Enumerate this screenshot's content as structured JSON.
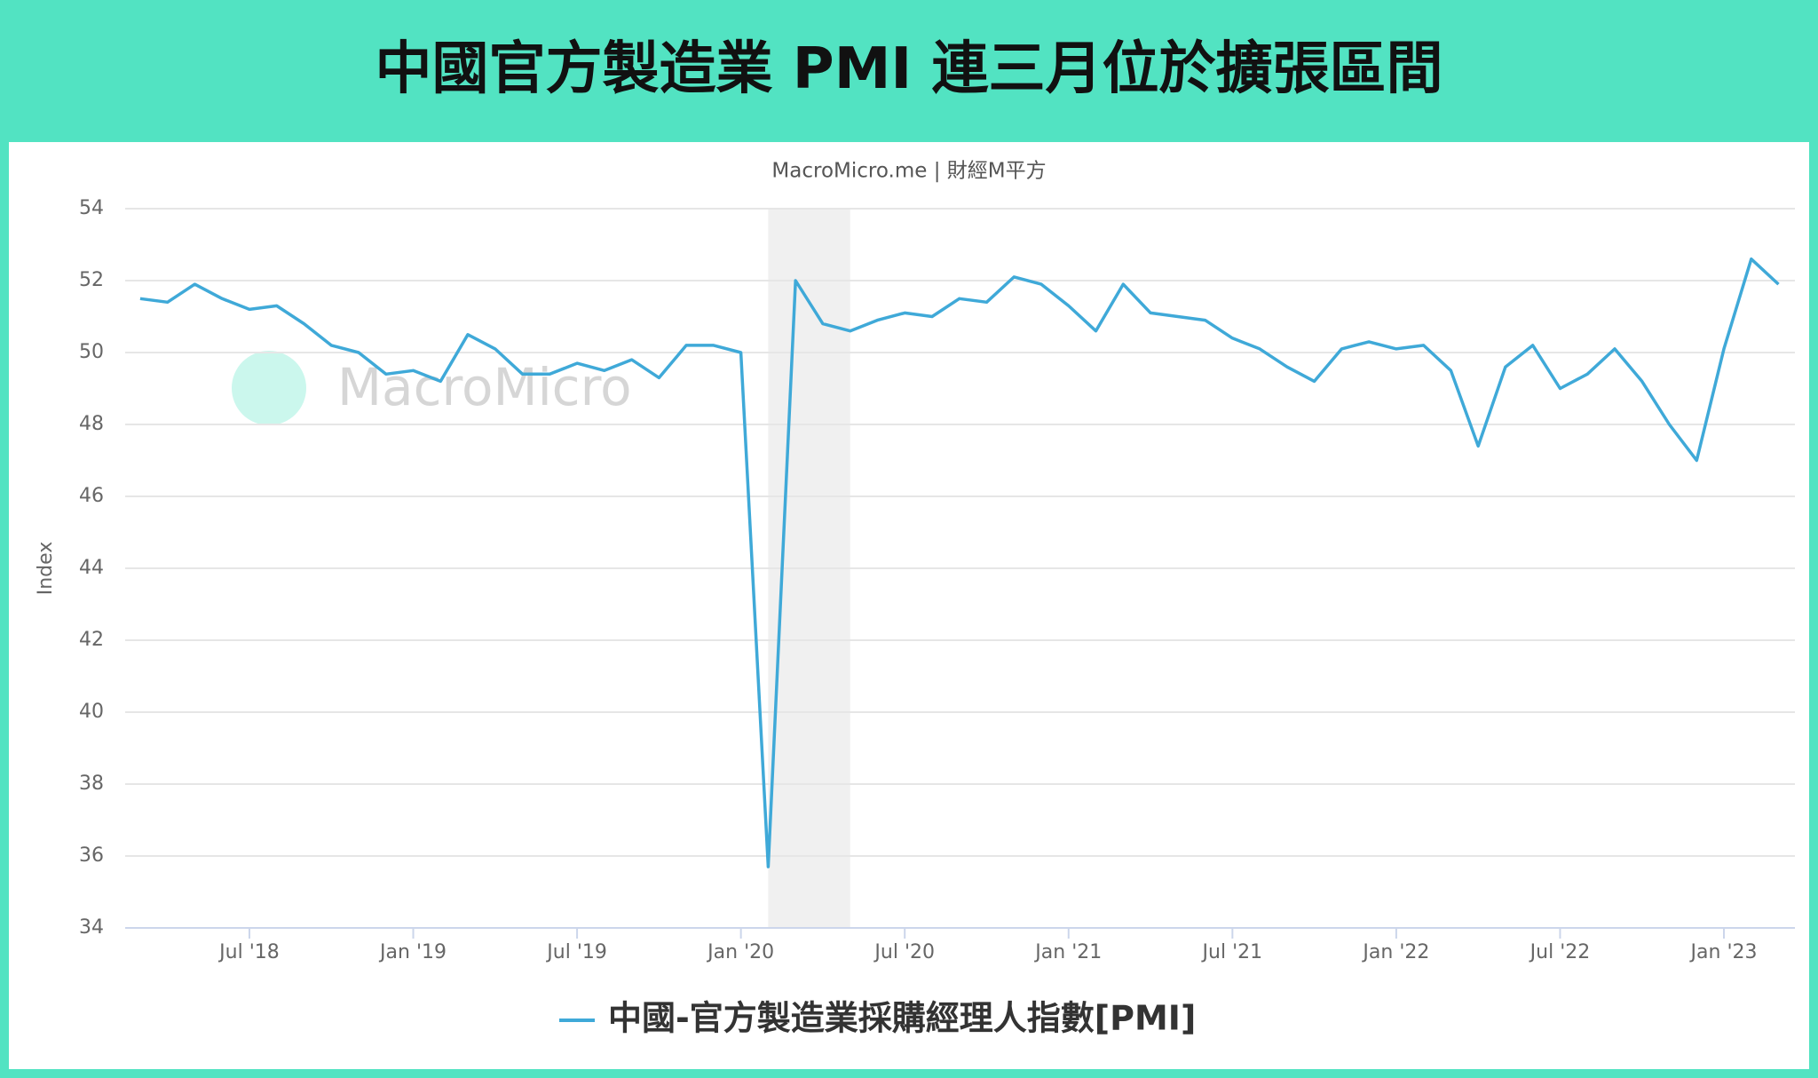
{
  "chart_data": {
    "type": "line",
    "title": "中國官方製造業 PMI 連三月位於擴張區間",
    "subtitle": "MacroMicro.me | 財經M平方",
    "watermark": "MacroMicro",
    "y_label": "Index",
    "x": [
      "2018-03",
      "2018-04",
      "2018-05",
      "2018-06",
      "2018-07",
      "2018-08",
      "2018-09",
      "2018-10",
      "2018-11",
      "2018-12",
      "2019-01",
      "2019-02",
      "2019-03",
      "2019-04",
      "2019-05",
      "2019-06",
      "2019-07",
      "2019-08",
      "2019-09",
      "2019-10",
      "2019-11",
      "2019-12",
      "2020-01",
      "2020-02",
      "2020-03",
      "2020-04",
      "2020-05",
      "2020-06",
      "2020-07",
      "2020-08",
      "2020-09",
      "2020-10",
      "2020-11",
      "2020-12",
      "2021-01",
      "2021-02",
      "2021-03",
      "2021-04",
      "2021-05",
      "2021-06",
      "2021-07",
      "2021-08",
      "2021-09",
      "2021-10",
      "2021-11",
      "2021-12",
      "2022-01",
      "2022-02",
      "2022-03",
      "2022-04",
      "2022-05",
      "2022-06",
      "2022-07",
      "2022-08",
      "2022-09",
      "2022-10",
      "2022-11",
      "2022-12",
      "2023-01",
      "2023-02",
      "2023-03"
    ],
    "series": [
      {
        "name": "中國-官方製造業採購經理人指數[PMI]",
        "color": "#3fa9d8",
        "values": [
          51.5,
          51.4,
          51.9,
          51.5,
          51.2,
          51.3,
          50.8,
          50.2,
          50.0,
          49.4,
          49.5,
          49.2,
          50.5,
          50.1,
          49.4,
          49.4,
          49.7,
          49.5,
          49.8,
          49.3,
          50.2,
          50.2,
          50.0,
          35.7,
          52.0,
          50.8,
          50.6,
          50.9,
          51.1,
          51.0,
          51.5,
          51.4,
          52.1,
          51.9,
          51.3,
          50.6,
          51.9,
          51.1,
          51.0,
          50.9,
          50.4,
          50.1,
          49.6,
          49.2,
          50.1,
          50.3,
          50.1,
          50.2,
          49.5,
          47.4,
          49.6,
          50.2,
          49.0,
          49.4,
          50.1,
          49.2,
          48.0,
          47.0,
          50.1,
          52.6,
          51.9
        ]
      }
    ],
    "xticks": [
      {
        "value": "2018-07",
        "label": "Jul '18"
      },
      {
        "value": "2019-01",
        "label": "Jan '19"
      },
      {
        "value": "2019-07",
        "label": "Jul '19"
      },
      {
        "value": "2020-01",
        "label": "Jan '20"
      },
      {
        "value": "2020-07",
        "label": "Jul '20"
      },
      {
        "value": "2021-01",
        "label": "Jan '21"
      },
      {
        "value": "2021-07",
        "label": "Jul '21"
      },
      {
        "value": "2022-01",
        "label": "Jan '22"
      },
      {
        "value": "2022-07",
        "label": "Jul '22"
      },
      {
        "value": "2023-01",
        "label": "Jan '23"
      }
    ],
    "ylim": [
      34,
      54
    ],
    "yticks": [
      34,
      36,
      38,
      40,
      42,
      44,
      46,
      48,
      50,
      52,
      54
    ],
    "grid": true,
    "shaded_ranges": [
      [
        "2020-02",
        "2020-05"
      ]
    ],
    "legend": "bottom"
  }
}
